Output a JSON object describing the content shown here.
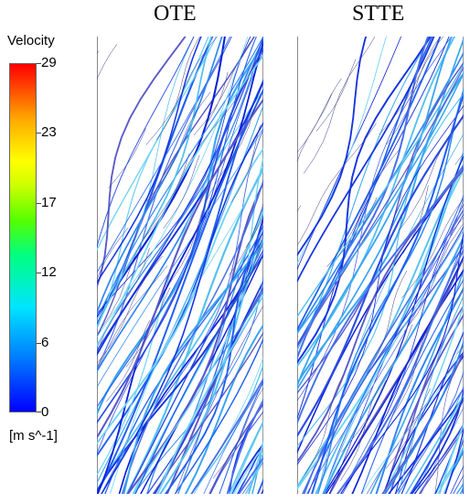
{
  "panels": [
    {
      "title": "OTE"
    },
    {
      "title": "STTE"
    }
  ],
  "legend": {
    "title": "Velocity",
    "unit": "[m s^-1]",
    "ticks": [
      "29",
      "23",
      "17",
      "12",
      "6",
      "0"
    ],
    "range": [
      0,
      29
    ],
    "colors": [
      "#0000ff",
      "#0080ff",
      "#00e5ff",
      "#00ff80",
      "#ccff00",
      "#ffff00",
      "#ffaa00",
      "#ff0000"
    ]
  }
}
